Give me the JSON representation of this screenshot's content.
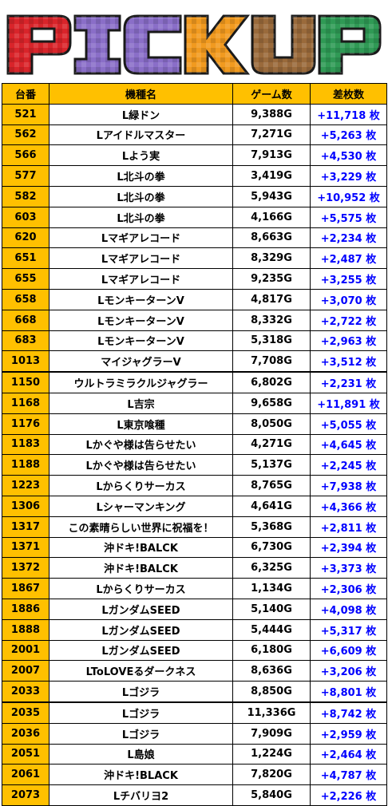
{
  "banner": {
    "letters": [
      {
        "char": "P",
        "color": "#d9242a"
      },
      {
        "char": "I",
        "color": "#8a6ec8"
      },
      {
        "char": "C",
        "color": "#8a6ec8"
      },
      {
        "char": "K",
        "color": "#f19a1f"
      },
      {
        "char": "U",
        "color": "#9a6a3b"
      },
      {
        "char": "P",
        "color": "#2f9a55"
      }
    ]
  },
  "table": {
    "headers": {
      "num": "台番",
      "name": "機種名",
      "games": "ゲーム数",
      "diff": "差枚数"
    },
    "colors": {
      "header_bg": "#ffc000",
      "num_bg": "#ffc000",
      "diff_text": "#0000ff"
    },
    "rows": [
      {
        "num": "521",
        "name": "L緑ドン",
        "games": "9,388G",
        "diff": "+11,718 枚"
      },
      {
        "num": "562",
        "name": "Lアイドルマスター",
        "games": "7,271G",
        "diff": "+5,263 枚"
      },
      {
        "num": "566",
        "name": "Lよう実",
        "games": "7,913G",
        "diff": "+4,530 枚"
      },
      {
        "num": "577",
        "name": "L北斗の拳",
        "games": "3,419G",
        "diff": "+3,229 枚"
      },
      {
        "num": "582",
        "name": "L北斗の拳",
        "games": "5,943G",
        "diff": "+10,952 枚"
      },
      {
        "num": "603",
        "name": "L北斗の拳",
        "games": "4,166G",
        "diff": "+5,575 枚"
      },
      {
        "num": "620",
        "name": "Lマギアレコード",
        "games": "8,663G",
        "diff": "+2,234 枚"
      },
      {
        "num": "651",
        "name": "Lマギアレコード",
        "games": "8,329G",
        "diff": "+2,487 枚"
      },
      {
        "num": "655",
        "name": "Lマギアレコード",
        "games": "9,235G",
        "diff": "+3,255 枚"
      },
      {
        "num": "658",
        "name": "LモンキーターンV",
        "games": "4,817G",
        "diff": "+3,070 枚"
      },
      {
        "num": "668",
        "name": "LモンキーターンV",
        "games": "8,332G",
        "diff": "+2,722 枚"
      },
      {
        "num": "683",
        "name": "LモンキーターンV",
        "games": "5,318G",
        "diff": "+2,963 枚"
      },
      {
        "num": "1013",
        "name": "マイジャグラーV",
        "games": "7,708G",
        "diff": "+3,512 枚"
      },
      {
        "num": "1150",
        "name": "ウルトラミラクルジャグラー",
        "games": "6,802G",
        "diff": "+2,231 枚"
      },
      {
        "num": "1168",
        "name": "L吉宗",
        "games": "9,658G",
        "diff": "+11,891 枚"
      },
      {
        "num": "1176",
        "name": "L東京喰種",
        "games": "8,050G",
        "diff": "+5,055 枚"
      },
      {
        "num": "1183",
        "name": "Lかぐや様は告らせたい",
        "games": "4,271G",
        "diff": "+4,645 枚"
      },
      {
        "num": "1188",
        "name": "Lかぐや様は告らせたい",
        "games": "5,137G",
        "diff": "+2,245 枚"
      },
      {
        "num": "1223",
        "name": "Lからくりサーカス",
        "games": "8,765G",
        "diff": "+7,938 枚"
      },
      {
        "num": "1306",
        "name": "Lシャーマンキング",
        "games": "4,641G",
        "diff": "+4,366 枚"
      },
      {
        "num": "1317",
        "name": "この素晴らしい世界に祝福を！",
        "games": "5,368G",
        "diff": "+2,811 枚"
      },
      {
        "num": "1371",
        "name": "沖ドキ!BALCK",
        "games": "6,730G",
        "diff": "+2,394 枚"
      },
      {
        "num": "1372",
        "name": "沖ドキ!BALCK",
        "games": "6,325G",
        "diff": "+3,373 枚"
      },
      {
        "num": "1867",
        "name": "Lからくりサーカス",
        "games": "1,134G",
        "diff": "+2,306 枚"
      },
      {
        "num": "1886",
        "name": "LガンダムSEED",
        "games": "5,140G",
        "diff": "+4,098 枚"
      },
      {
        "num": "1888",
        "name": "LガンダムSEED",
        "games": "5,444G",
        "diff": "+5,317 枚"
      },
      {
        "num": "2001",
        "name": "LガンダムSEED",
        "games": "6,180G",
        "diff": "+6,609 枚"
      },
      {
        "num": "2007",
        "name": "LToLOVEるダークネス",
        "games": "8,636G",
        "diff": "+3,206 枚"
      },
      {
        "num": "2033",
        "name": "Lゴジラ",
        "games": "8,850G",
        "diff": "+8,801 枚"
      },
      {
        "num": "2035",
        "name": "Lゴジラ",
        "games": "11,336G",
        "diff": "+8,742 枚"
      },
      {
        "num": "2036",
        "name": "Lゴジラ",
        "games": "7,909G",
        "diff": "+2,959 枚"
      },
      {
        "num": "2051",
        "name": "L島娘",
        "games": "1,224G",
        "diff": "+2,464 枚"
      },
      {
        "num": "2061",
        "name": "沖ドキ!BLACK",
        "games": "7,820G",
        "diff": "+4,787 枚"
      },
      {
        "num": "2073",
        "name": "Lチバリヨ2",
        "games": "5,840G",
        "diff": "+2,226 枚"
      }
    ]
  }
}
